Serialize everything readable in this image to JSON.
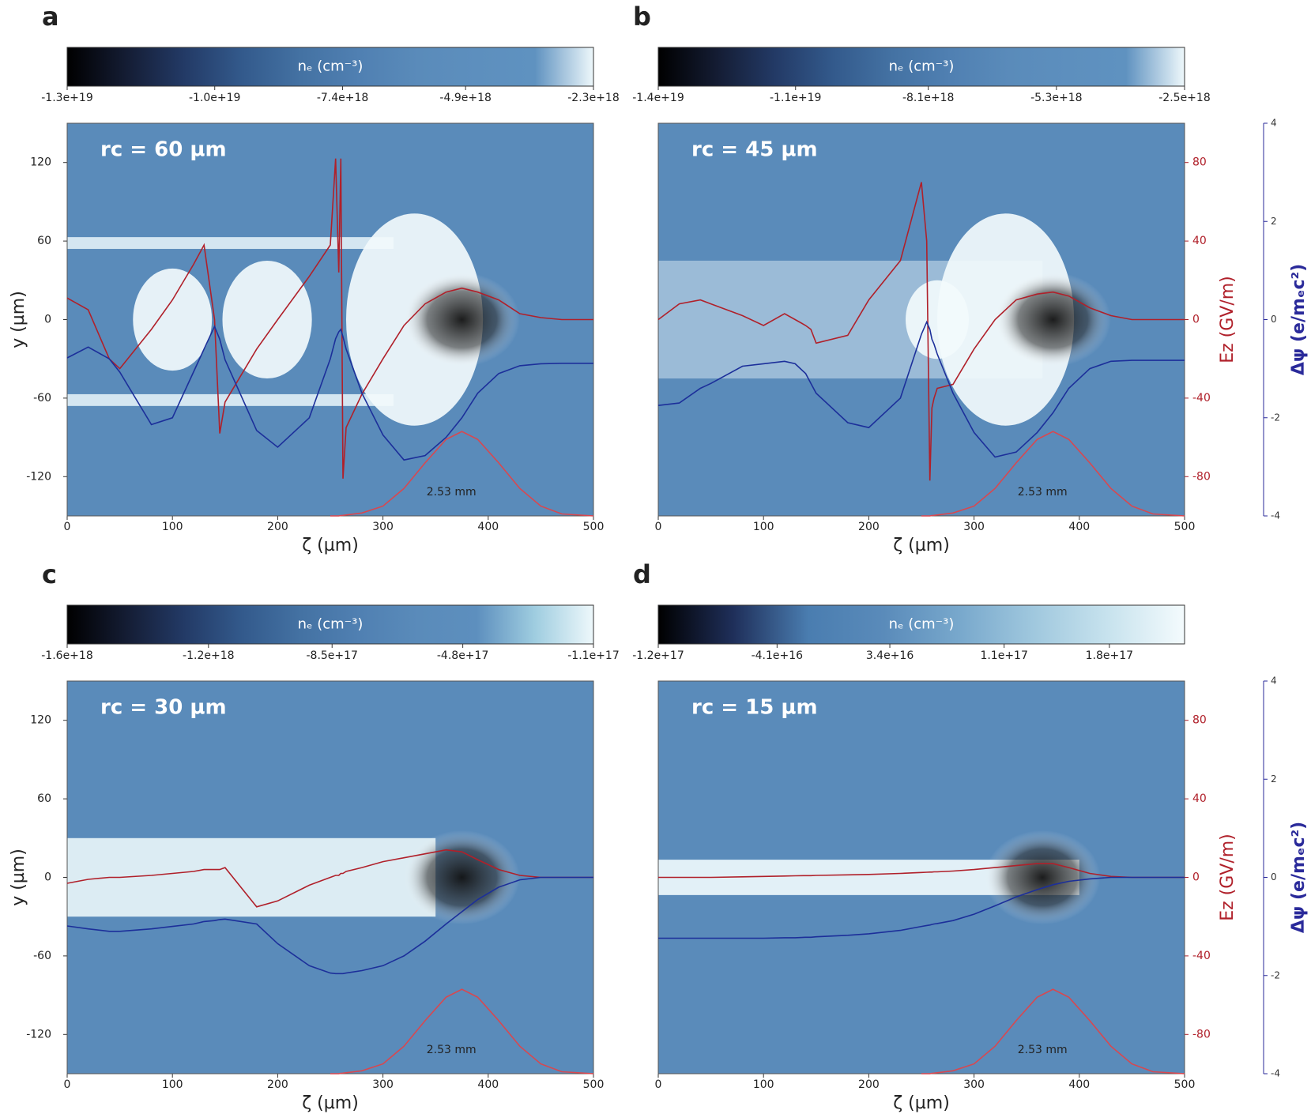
{
  "chart_data": [
    {
      "type": "line",
      "panel_label": "a",
      "annotation": "rc = 60 µm",
      "note": "2.53 mm",
      "background": "#5a8bba",
      "colorbar": {
        "label": "nₑ (cm⁻³)",
        "lim": [
          -1.3e+19,
          -2.3e+18
        ],
        "ticks": [
          {
            "value": -1.3e+19,
            "label": "-1.3e+19"
          },
          {
            "value": -1e+19,
            "label": "-1.0e+19"
          },
          {
            "value": -7.4e+18,
            "label": "-7.4e+18"
          },
          {
            "value": -4.9e+18,
            "label": "-4.9e+18"
          },
          {
            "value": -2.3e+18,
            "label": "-2.3e+18"
          }
        ],
        "colors": [
          "#000000",
          "#141c33",
          "#233a66",
          "#335a8c",
          "#4472a3",
          "#5080b2",
          "#5a8bba",
          "#5d8fbe",
          "#5f92c0",
          "#eef8fb"
        ]
      },
      "x": [
        0,
        20,
        40,
        50,
        80,
        100,
        120,
        130,
        140,
        145,
        150,
        180,
        200,
        230,
        250,
        255,
        258,
        260,
        262,
        265,
        280,
        300,
        320,
        340,
        360,
        375,
        390,
        410,
        430,
        450,
        470,
        500
      ],
      "xlim": [
        0,
        500
      ],
      "xticks": [
        0,
        100,
        200,
        300,
        400,
        500
      ],
      "xlabel": "ζ (µm)",
      "ylim": [
        -150,
        150
      ],
      "yticks": [
        -120,
        -60,
        0,
        60,
        120
      ],
      "ylabel": "y (µm)",
      "y2lim": [
        -100,
        100
      ],
      "y3lim": [
        -4,
        4
      ],
      "series": [
        {
          "color": "#b0202a",
          "axis": "y2",
          "values": [
            11,
            5,
            -20,
            -25,
            -5,
            10,
            28,
            38,
            0,
            -58,
            -42,
            -15,
            0,
            22,
            38,
            82,
            24,
            82,
            -81,
            -55,
            -38,
            -20,
            -3,
            8,
            14,
            16,
            14,
            10,
            3,
            1,
            0,
            0
          ]
        },
        {
          "color": "#1c2f9a",
          "axis": "y3",
          "values": [
            -0.78,
            -0.56,
            -0.8,
            -1.07,
            -2.14,
            -2.0,
            -1.07,
            -0.6,
            -0.14,
            -0.4,
            -0.82,
            -2.26,
            -2.6,
            -2.0,
            -0.8,
            -0.39,
            -0.25,
            -0.2,
            -0.35,
            -0.6,
            -1.5,
            -2.35,
            -2.86,
            -2.77,
            -2.4,
            -2.0,
            -1.5,
            -1.1,
            -0.94,
            -0.9,
            -0.89,
            -0.89
          ]
        },
        {
          "color": "#d9474f",
          "axis": "y2",
          "values": [
            null,
            null,
            null,
            null,
            null,
            null,
            null,
            null,
            null,
            null,
            null,
            null,
            null,
            null,
            -100,
            -100,
            -100,
            -99.8,
            -99.7,
            -99.5,
            -98.5,
            -95,
            -86,
            -73,
            -61,
            -57,
            -61,
            -73,
            -86,
            -95,
            -99,
            -100
          ]
        }
      ]
    },
    {
      "type": "line",
      "panel_label": "b",
      "annotation": "rc = 45 µm",
      "note": "2.53 mm",
      "background": "#5a8bba",
      "colorbar": {
        "label": "nₑ (cm⁻³)",
        "lim": [
          -1.4e+19,
          -2.5e+18
        ],
        "ticks": [
          {
            "value": -1.4e+19,
            "label": "-1.4e+19"
          },
          {
            "value": -1.1e+19,
            "label": "-1.1e+19"
          },
          {
            "value": -8.1e+18,
            "label": "-8.1e+18"
          },
          {
            "value": -5.3e+18,
            "label": "-5.3e+18"
          },
          {
            "value": -2.5e+18,
            "label": "-2.5e+18"
          }
        ],
        "colors": [
          "#000000",
          "#141c33",
          "#233a66",
          "#335a8c",
          "#4472a3",
          "#5080b2",
          "#5a8bba",
          "#5d8fbe",
          "#5f92c0",
          "#eef8fb"
        ]
      },
      "x": [
        0,
        20,
        40,
        50,
        80,
        100,
        120,
        130,
        140,
        145,
        150,
        180,
        200,
        230,
        250,
        255,
        258,
        260,
        262,
        265,
        280,
        300,
        320,
        340,
        360,
        375,
        390,
        410,
        430,
        450,
        470,
        500
      ],
      "xlim": [
        0,
        500
      ],
      "xticks": [
        0,
        100,
        200,
        300,
        400,
        500
      ],
      "xlabel": "ζ (µm)",
      "ylim": [
        -150,
        150
      ],
      "y2lim": [
        -100,
        100
      ],
      "y2ticks": [
        -80,
        -40,
        0,
        40,
        80
      ],
      "y2label": "Ez (GV/m)",
      "y2color": "#b0202a",
      "y3lim": [
        -4,
        4
      ],
      "y3ticks": [
        -4,
        -2,
        0,
        2,
        4
      ],
      "y3label": "Δψ (e/mₑc²)",
      "y3color": "#2a2a9a",
      "series": [
        {
          "color": "#b0202a",
          "axis": "y2",
          "values": [
            0,
            8,
            10,
            8,
            2,
            -3,
            3,
            0,
            -3,
            -5,
            -12,
            -8,
            10,
            30,
            70,
            40,
            -82,
            -45,
            -40,
            -35,
            -33,
            -15,
            0,
            10,
            13,
            14,
            12,
            6,
            2,
            0,
            0,
            0
          ]
        },
        {
          "color": "#1c2f9a",
          "axis": "y3",
          "values": [
            -1.75,
            -1.7,
            -1.4,
            -1.3,
            -0.95,
            -0.9,
            -0.85,
            -0.9,
            -1.1,
            -1.3,
            -1.5,
            -2.1,
            -2.2,
            -1.6,
            -0.3,
            -0.05,
            -0.2,
            -0.4,
            -0.5,
            -0.7,
            -1.5,
            -2.3,
            -2.8,
            -2.7,
            -2.3,
            -1.9,
            -1.4,
            -1.0,
            -0.85,
            -0.83,
            -0.83,
            -0.83
          ]
        },
        {
          "color": "#d9474f",
          "axis": "y2",
          "values": [
            null,
            null,
            null,
            null,
            null,
            null,
            null,
            null,
            null,
            null,
            null,
            null,
            null,
            null,
            -100,
            -100,
            -100,
            -99.8,
            -99.7,
            -99.5,
            -98.5,
            -95,
            -86,
            -73,
            -61,
            -57,
            -61,
            -73,
            -86,
            -95,
            -99,
            -100
          ]
        }
      ]
    },
    {
      "type": "line",
      "panel_label": "c",
      "annotation": "rc = 30 µm",
      "note": "2.53 mm",
      "background": "#5a8bba",
      "colorbar": {
        "label": "nₑ (cm⁻³)",
        "lim": [
          -1.6e+18,
          -1.1e+17
        ],
        "ticks": [
          {
            "value": -1.6e+18,
            "label": "-1.6e+18"
          },
          {
            "value": -1.2e+18,
            "label": "-1.2e+18"
          },
          {
            "value": -8.5e+17,
            "label": "-8.5e+17"
          },
          {
            "value": -4.8e+17,
            "label": "-4.8e+17"
          },
          {
            "value": -1.1e+17,
            "label": "-1.1e+17"
          }
        ],
        "colors": [
          "#000000",
          "#141c33",
          "#233a66",
          "#335a8c",
          "#4472a3",
          "#5080b2",
          "#5a8bba",
          "#5d8fbe",
          "#9fcde0",
          "#eef8fb"
        ]
      },
      "x": [
        0,
        20,
        40,
        50,
        80,
        100,
        120,
        130,
        140,
        145,
        150,
        180,
        200,
        230,
        250,
        255,
        258,
        260,
        262,
        265,
        280,
        300,
        320,
        340,
        360,
        375,
        390,
        410,
        430,
        450,
        470,
        500
      ],
      "xlim": [
        0,
        500
      ],
      "xticks": [
        0,
        100,
        200,
        300,
        400,
        500
      ],
      "xlabel": "ζ (µm)",
      "ylim": [
        -150,
        150
      ],
      "yticks": [
        -120,
        -60,
        0,
        60,
        120
      ],
      "ylabel": "y (µm)",
      "y2lim": [
        -100,
        100
      ],
      "y3lim": [
        -4,
        4
      ],
      "series": [
        {
          "color": "#b0202a",
          "axis": "y2",
          "values": [
            -3,
            -1,
            0,
            0,
            1,
            2,
            3,
            4,
            4,
            4,
            5,
            -15,
            -12,
            -4,
            0,
            1,
            1,
            2,
            2,
            3,
            5,
            8,
            10,
            12,
            14,
            13,
            9,
            4,
            1,
            0,
            0,
            0
          ]
        },
        {
          "color": "#1c2f9a",
          "axis": "y3",
          "values": [
            -0.99,
            -1.05,
            -1.1,
            -1.1,
            -1.05,
            -1.0,
            -0.95,
            -0.9,
            -0.88,
            -0.86,
            -0.85,
            -0.95,
            -1.35,
            -1.8,
            -1.95,
            -1.96,
            -1.96,
            -1.96,
            -1.96,
            -1.95,
            -1.9,
            -1.8,
            -1.6,
            -1.3,
            -0.95,
            -0.7,
            -0.45,
            -0.2,
            -0.05,
            0,
            0,
            0
          ]
        },
        {
          "color": "#d9474f",
          "axis": "y2",
          "values": [
            null,
            null,
            null,
            null,
            null,
            null,
            null,
            null,
            null,
            null,
            null,
            null,
            null,
            null,
            -100,
            -100,
            -100,
            -99.8,
            -99.7,
            -99.5,
            -98.5,
            -95,
            -86,
            -73,
            -61,
            -57,
            -61,
            -73,
            -86,
            -95,
            -99,
            -100
          ]
        }
      ]
    },
    {
      "type": "line",
      "panel_label": "d",
      "annotation": "rc = 15 µm",
      "note": "2.53 mm",
      "background": "#5a8bba",
      "colorbar": {
        "label": "nₑ (cm⁻³)",
        "lim": [
          -1.2e+17,
          2.3e+17
        ],
        "ticks": [
          {
            "value": -1.2e+17,
            "label": "-1.2e+17"
          },
          {
            "value": -4.1e+16,
            "label": "-4.1e+16"
          },
          {
            "value": 3.4e+16,
            "label": "3.4e+16"
          },
          {
            "value": 1.1e+17,
            "label": "1.1e+17"
          },
          {
            "value": 1.8e+17,
            "label": "1.8e+17"
          }
        ],
        "colors": [
          "#000000",
          "#1f2f5a",
          "#4a7db0",
          "#5a8bba",
          "#78a8cc",
          "#a0c8de",
          "#c8e3ee",
          "#f4fbfd"
        ]
      },
      "x": [
        0,
        20,
        40,
        50,
        80,
        100,
        120,
        130,
        140,
        145,
        150,
        180,
        200,
        230,
        250,
        255,
        258,
        260,
        262,
        265,
        280,
        300,
        320,
        340,
        360,
        375,
        390,
        410,
        430,
        450,
        470,
        500
      ],
      "xlim": [
        0,
        500
      ],
      "xticks": [
        0,
        100,
        200,
        300,
        400,
        500
      ],
      "xlabel": "ζ (µm)",
      "ylim": [
        -150,
        150
      ],
      "y2lim": [
        -100,
        100
      ],
      "y2ticks": [
        -80,
        -40,
        0,
        40,
        80
      ],
      "y2label": "Ez (GV/m)",
      "y2color": "#b0202a",
      "y3lim": [
        -4,
        4
      ],
      "y3ticks": [
        -4,
        -2,
        0,
        2,
        4
      ],
      "y3label": "Δψ (e/mₑc²)",
      "y3color": "#2a2a9a",
      "series": [
        {
          "color": "#b0202a",
          "axis": "y2",
          "values": [
            0,
            0,
            0,
            0,
            0.3,
            0.5,
            0.7,
            0.8,
            0.9,
            0.9,
            1,
            1.3,
            1.5,
            2,
            2.5,
            2.6,
            2.7,
            2.7,
            2.8,
            2.8,
            3.2,
            4,
            5,
            6,
            7,
            7,
            5,
            2,
            0.5,
            0,
            0,
            0
          ]
        },
        {
          "color": "#1c2f9a",
          "axis": "y3",
          "values": [
            -1.24,
            -1.24,
            -1.24,
            -1.24,
            -1.24,
            -1.24,
            -1.23,
            -1.23,
            -1.22,
            -1.22,
            -1.21,
            -1.18,
            -1.15,
            -1.08,
            -1.0,
            -0.98,
            -0.97,
            -0.96,
            -0.95,
            -0.94,
            -0.88,
            -0.75,
            -0.58,
            -0.4,
            -0.25,
            -0.15,
            -0.08,
            -0.03,
            0,
            0,
            0,
            0
          ]
        },
        {
          "color": "#d9474f",
          "axis": "y2",
          "values": [
            null,
            null,
            null,
            null,
            null,
            null,
            null,
            null,
            null,
            null,
            null,
            null,
            null,
            null,
            -100,
            -100,
            -100,
            -99.8,
            -99.7,
            -99.5,
            -98.5,
            -95,
            -86,
            -73,
            -61,
            -57,
            -61,
            -73,
            -86,
            -95,
            -99,
            -100
          ]
        }
      ]
    }
  ]
}
